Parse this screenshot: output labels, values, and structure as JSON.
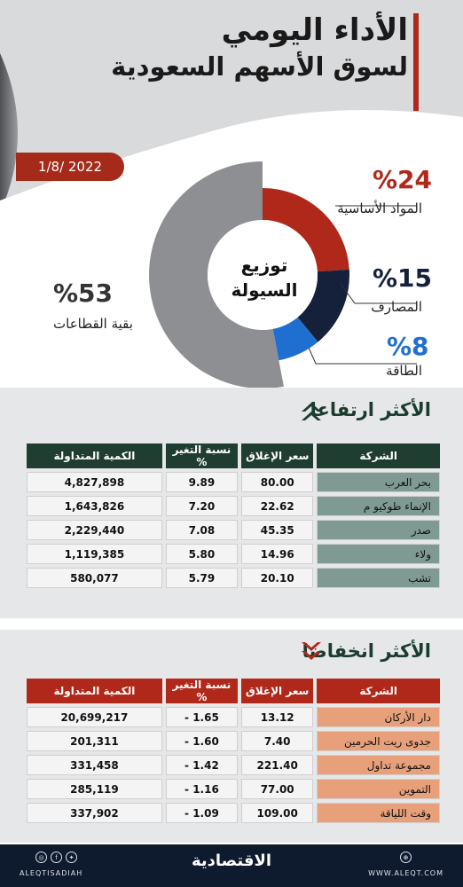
{
  "header": {
    "title_line1": "الأداء اليومي",
    "title_line2": "لسوق الأسهم السعودية",
    "date": "1/8/ 2022"
  },
  "donut": {
    "center_line1": "توزيع",
    "center_line2": "السيولة",
    "segments": [
      {
        "pct_label": "%24",
        "name": "المواد الأساسية",
        "value": 24,
        "color": "#b0281a"
      },
      {
        "pct_label": "%15",
        "name": "المصارف",
        "value": 15,
        "color": "#15213a"
      },
      {
        "pct_label": "%8",
        "name": "الطاقة",
        "value": 8,
        "color": "#1f6fd1"
      },
      {
        "pct_label": "%53",
        "name": "بقية القطاعات",
        "value": 53,
        "color": "#8e8f92"
      }
    ]
  },
  "gainers": {
    "title": "الأكثر ارتفاعا",
    "headers": [
      "الشركة",
      "سعر الإغلاق",
      "نسبة التغير %",
      "الكمية المتداولة"
    ],
    "rows": [
      [
        "بحر العرب",
        "80.00",
        "9.89",
        "4,827,898"
      ],
      [
        "الإنماء طوكيو م",
        "22.62",
        "7.20",
        "1,643,826"
      ],
      [
        "صدر",
        "45.35",
        "7.08",
        "2,229,440"
      ],
      [
        "ولاء",
        "14.96",
        "5.80",
        "1,119,385"
      ],
      [
        "تشب",
        "20.10",
        "5.79",
        "580,077"
      ]
    ]
  },
  "losers": {
    "title": "الأكثر انخفاضا",
    "headers": [
      "الشركة",
      "سعر الإغلاق",
      "نسبة التغير %",
      "الكمية المتداولة"
    ],
    "rows": [
      [
        "دار الأركان",
        "13.12",
        "1.65 -",
        "20,699,217"
      ],
      [
        "جدوى ريت الحرمين",
        "7.40",
        "1.60 -",
        "201,311"
      ],
      [
        "مجموعة تداول",
        "221.40",
        "1.42 -",
        "331,458"
      ],
      [
        "التموين",
        "77.00",
        "1.16 -",
        "285,119"
      ],
      [
        "وقت اللياقة",
        "109.00",
        "1.09 -",
        "337,902"
      ]
    ]
  },
  "footer": {
    "brand": "الاقتصادية",
    "handle": "ALEQTISADIAH",
    "site": "WWW.ALEQT.COM"
  }
}
